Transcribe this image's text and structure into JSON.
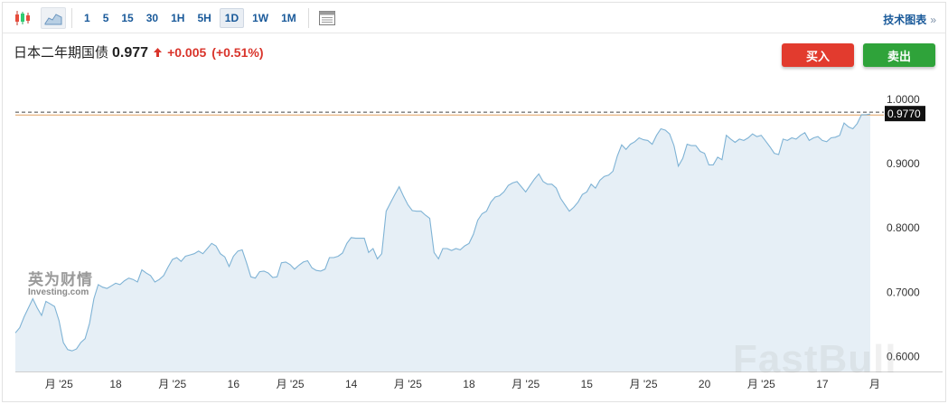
{
  "toolbar": {
    "timeframes": [
      {
        "label": "1",
        "active": false
      },
      {
        "label": "5",
        "active": false
      },
      {
        "label": "15",
        "active": false
      },
      {
        "label": "30",
        "active": false
      },
      {
        "label": "1H",
        "active": false
      },
      {
        "label": "5H",
        "active": false
      },
      {
        "label": "1D",
        "active": true
      },
      {
        "label": "1W",
        "active": false
      },
      {
        "label": "1M",
        "active": false
      }
    ],
    "tech_chart_label": "技术图表",
    "tech_chart_chevron": "»"
  },
  "header": {
    "title": "日本二年期国债",
    "price": "0.977",
    "change": "+0.005",
    "change_pct": "(+0.51%)"
  },
  "buttons": {
    "buy": "买入",
    "sell": "卖出"
  },
  "watermarks": {
    "left_cn": "英为财情",
    "left_en": "Investing.com",
    "right": "FastBull"
  },
  "colors": {
    "line": "#7fb3d5",
    "fill": "#e6eff6",
    "up": "#d9342b",
    "buy": "#e23b2e",
    "sell": "#2fa33a",
    "last_label_bg": "#111111"
  },
  "chart_data": {
    "type": "area",
    "series": [
      {
        "values": [
          0.637,
          0.645,
          0.662,
          0.676,
          0.69,
          0.676,
          0.664,
          0.686,
          0.682,
          0.678,
          0.656,
          0.622,
          0.611,
          0.609,
          0.612,
          0.622,
          0.628,
          0.652,
          0.69,
          0.712,
          0.708,
          0.706,
          0.71,
          0.714,
          0.712,
          0.718,
          0.722,
          0.72,
          0.716,
          0.735,
          0.73,
          0.726,
          0.716,
          0.72,
          0.726,
          0.739,
          0.751,
          0.754,
          0.748,
          0.756,
          0.758,
          0.76,
          0.764,
          0.76,
          0.768,
          0.776,
          0.772,
          0.76,
          0.755,
          0.74,
          0.756,
          0.764,
          0.766,
          0.746,
          0.724,
          0.722,
          0.732,
          0.733,
          0.73,
          0.723,
          0.724,
          0.746,
          0.747,
          0.743,
          0.736,
          0.742,
          0.747,
          0.749,
          0.738,
          0.734,
          0.733,
          0.736,
          0.754,
          0.754,
          0.756,
          0.761,
          0.776,
          0.785,
          0.784,
          0.784,
          0.784,
          0.762,
          0.768,
          0.752,
          0.76,
          0.826,
          0.839,
          0.852,
          0.864,
          0.849,
          0.836,
          0.827,
          0.826,
          0.826,
          0.82,
          0.815,
          0.762,
          0.752,
          0.768,
          0.768,
          0.765,
          0.768,
          0.766,
          0.772,
          0.776,
          0.79,
          0.812,
          0.822,
          0.826,
          0.84,
          0.848,
          0.85,
          0.856,
          0.866,
          0.87,
          0.872,
          0.864,
          0.856,
          0.866,
          0.876,
          0.884,
          0.872,
          0.868,
          0.868,
          0.862,
          0.846,
          0.836,
          0.826,
          0.832,
          0.84,
          0.852,
          0.856,
          0.868,
          0.862,
          0.874,
          0.88,
          0.882,
          0.888,
          0.912,
          0.929,
          0.922,
          0.93,
          0.934,
          0.94,
          0.937,
          0.936,
          0.93,
          0.944,
          0.954,
          0.952,
          0.946,
          0.928,
          0.896,
          0.908,
          0.93,
          0.928,
          0.928,
          0.919,
          0.916,
          0.898,
          0.898,
          0.91,
          0.906,
          0.944,
          0.938,
          0.933,
          0.938,
          0.936,
          0.94,
          0.946,
          0.942,
          0.944,
          0.935,
          0.926,
          0.916,
          0.914,
          0.938,
          0.936,
          0.94,
          0.938,
          0.944,
          0.948,
          0.936,
          0.94,
          0.942,
          0.936,
          0.934,
          0.94,
          0.941,
          0.944,
          0.963,
          0.957,
          0.954,
          0.962,
          0.976,
          0.976,
          0.977
        ]
      }
    ],
    "y_ticks": [
      "1.0000",
      "0.9000",
      "0.8000",
      "0.7000",
      "0.6000"
    ],
    "y_tick_values": [
      1.0,
      0.9,
      0.8,
      0.7,
      0.6
    ],
    "ylim": [
      0.577,
      1.032
    ],
    "x_tick_labels": [
      "月 '25",
      "18",
      "月 '25",
      "16",
      "月 '25",
      "14",
      "月 '25",
      "18",
      "月 '25",
      "15",
      "月 '25",
      "20",
      "月 '25",
      "17",
      "月"
    ],
    "x_tick_index": [
      10,
      23,
      36,
      50,
      63,
      77,
      90,
      104,
      117,
      131,
      144,
      158,
      171,
      185,
      197
    ],
    "last_value_label": "0.9770",
    "last_value": 0.977,
    "reference_value": 0.9755,
    "grid": false
  }
}
